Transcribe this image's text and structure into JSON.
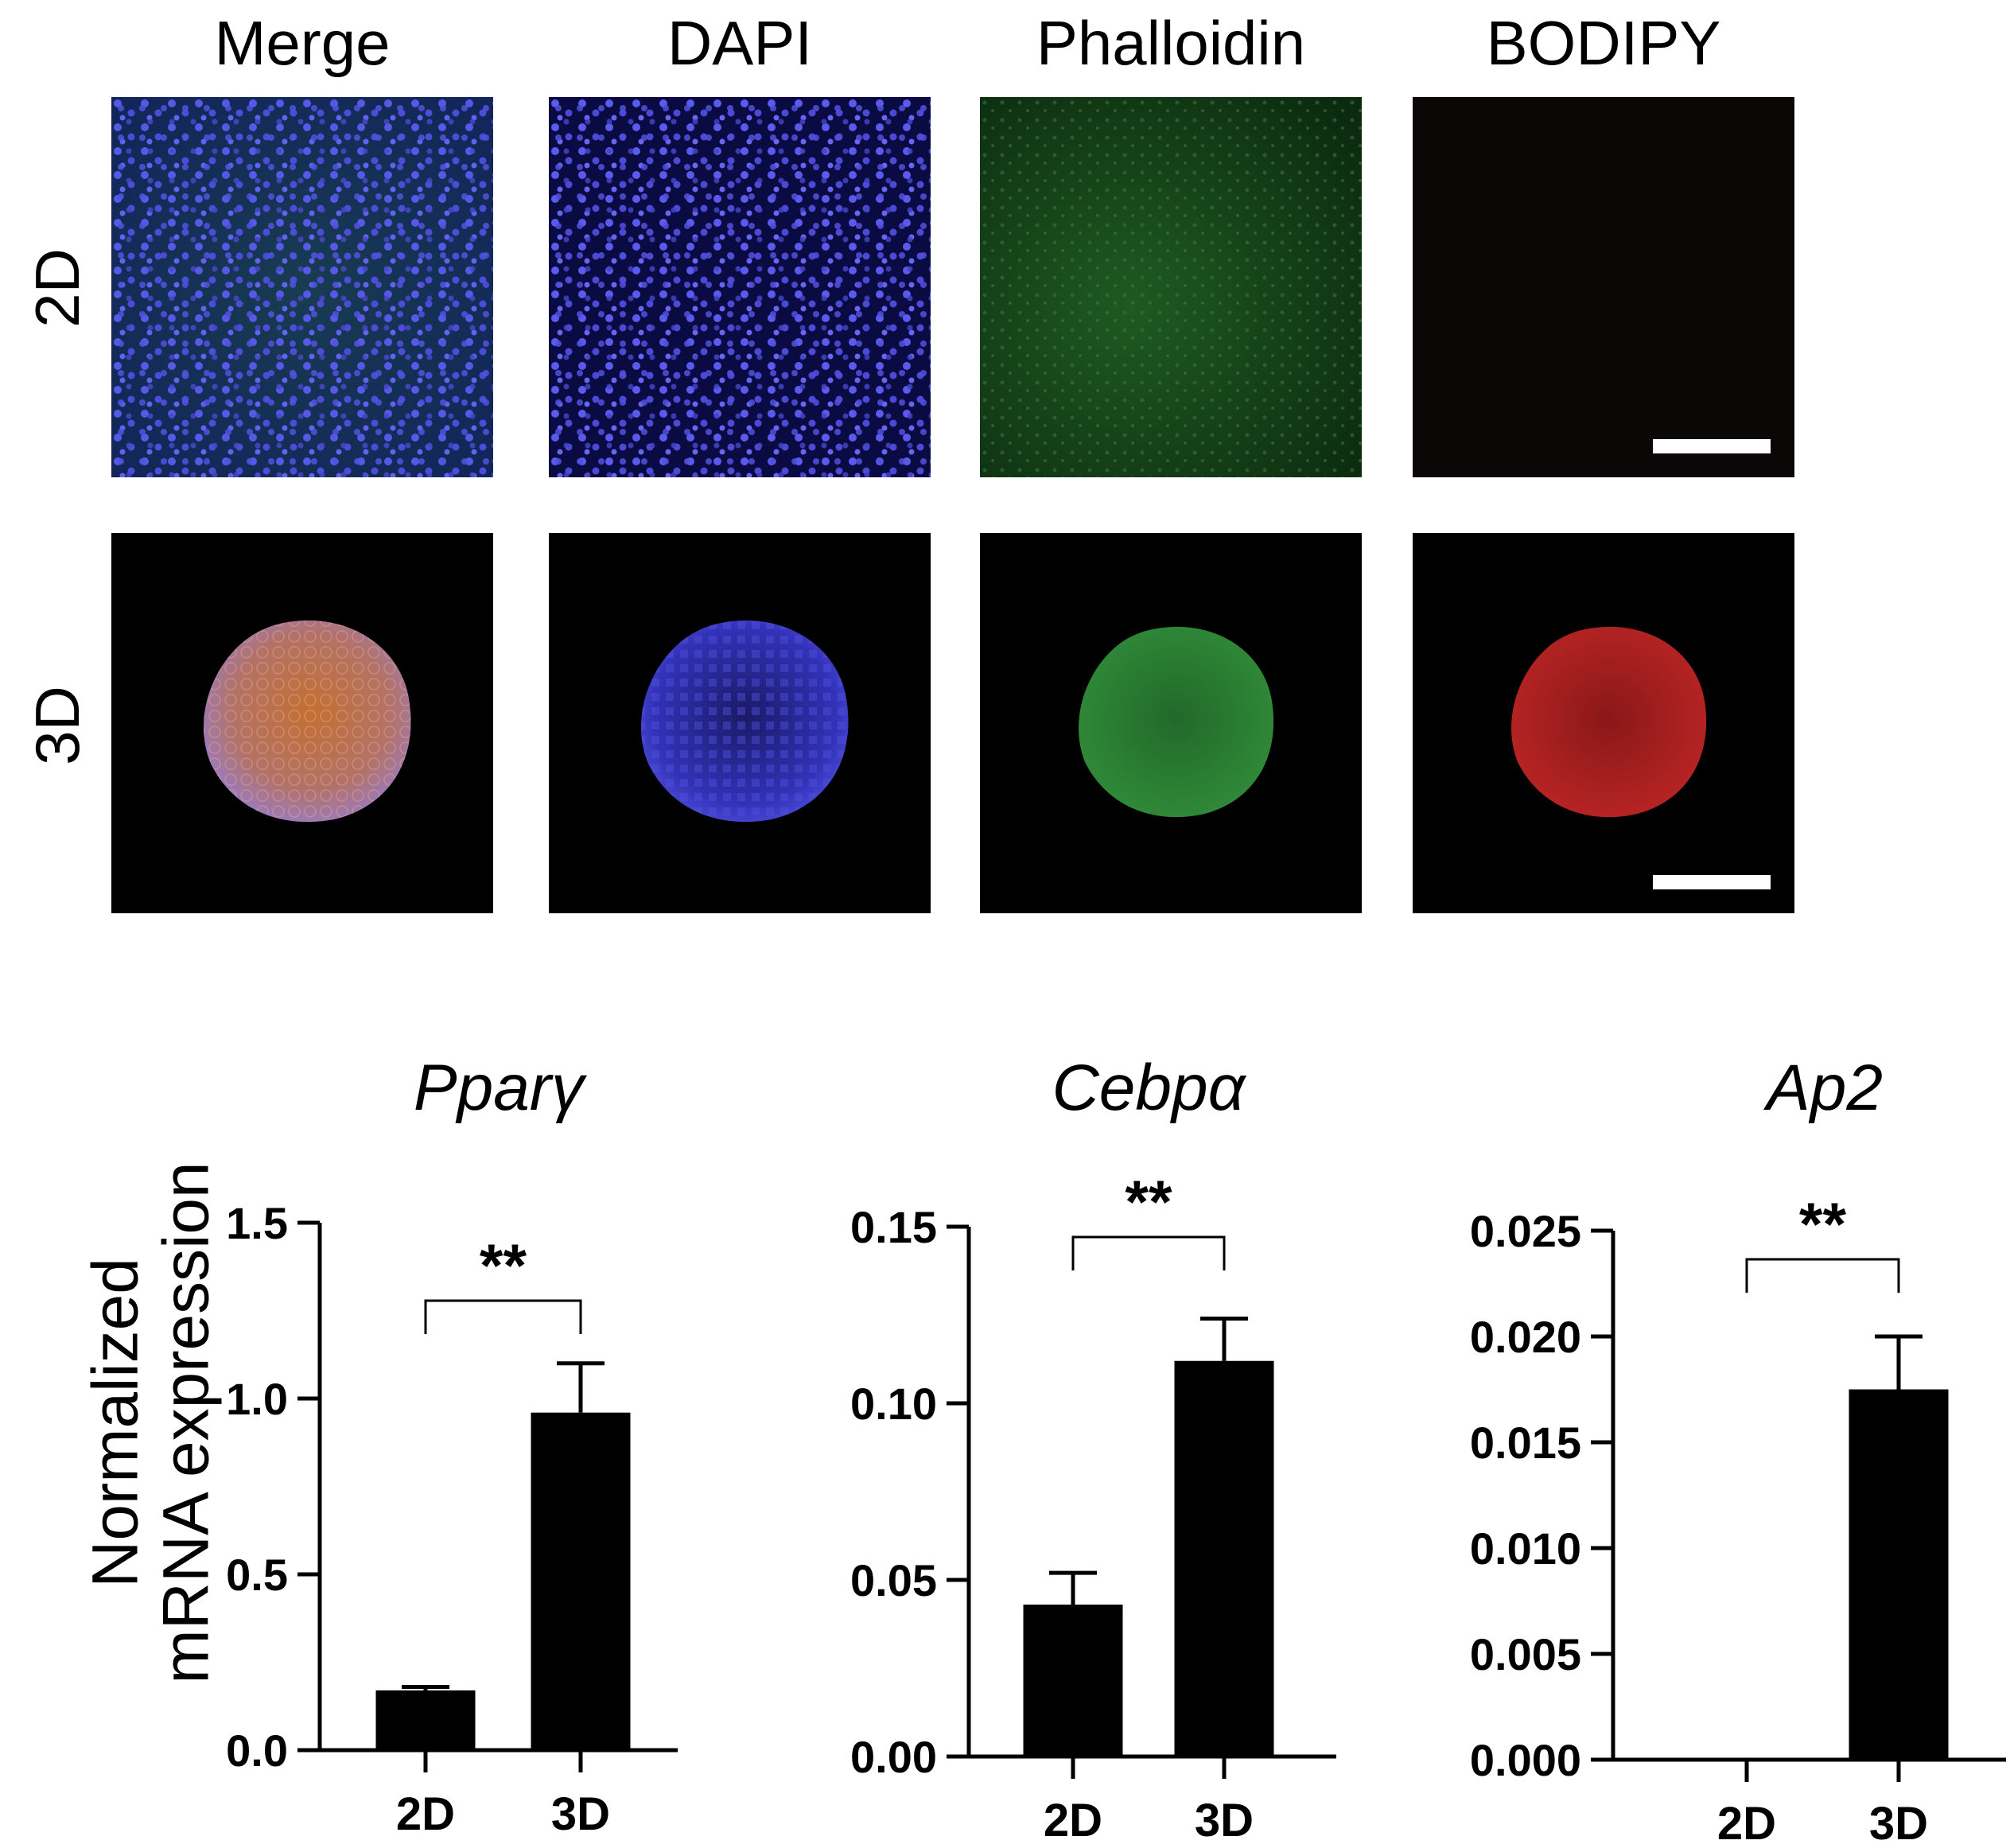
{
  "image_panel": {
    "columns": [
      "Merge",
      "DAPI",
      "Phalloidin",
      "BODIPY"
    ],
    "rows": [
      "2D",
      "3D"
    ],
    "colors": {
      "dapi": "#3a3ad8",
      "phalloidin": "#2f9a3c",
      "bodipy": "#c42222",
      "merge_3d": "#c27a5e",
      "background": "#000000",
      "scale_bar": "#ffffff"
    }
  },
  "shared_ylabel": [
    "Normalized",
    "mRNA expression"
  ],
  "chart_data": [
    {
      "type": "bar",
      "title": "Pparγ",
      "categories": [
        "2D",
        "3D"
      ],
      "values": [
        0.17,
        0.96
      ],
      "error": [
        0.01,
        0.14
      ],
      "ylim": [
        0,
        1.5
      ],
      "yticks": [
        "0.0",
        "0.5",
        "1.0",
        "1.5"
      ],
      "significance": "**",
      "bar_color": "#000000"
    },
    {
      "type": "bar",
      "title": "Cebpα",
      "categories": [
        "2D",
        "3D"
      ],
      "values": [
        0.043,
        0.112
      ],
      "error": [
        0.009,
        0.012
      ],
      "ylim": [
        0,
        0.15
      ],
      "yticks": [
        "0.00",
        "0.05",
        "0.10",
        "0.15"
      ],
      "significance": "**",
      "bar_color": "#000000"
    },
    {
      "type": "bar",
      "title": "Ap2",
      "categories": [
        "2D",
        "3D"
      ],
      "values": [
        0.0,
        0.0175
      ],
      "error": [
        0.0,
        0.0025
      ],
      "ylim": [
        0,
        0.025
      ],
      "yticks": [
        "0.000",
        "0.005",
        "0.010",
        "0.015",
        "0.020",
        "0.025"
      ],
      "significance": "**",
      "bar_color": "#000000"
    }
  ]
}
